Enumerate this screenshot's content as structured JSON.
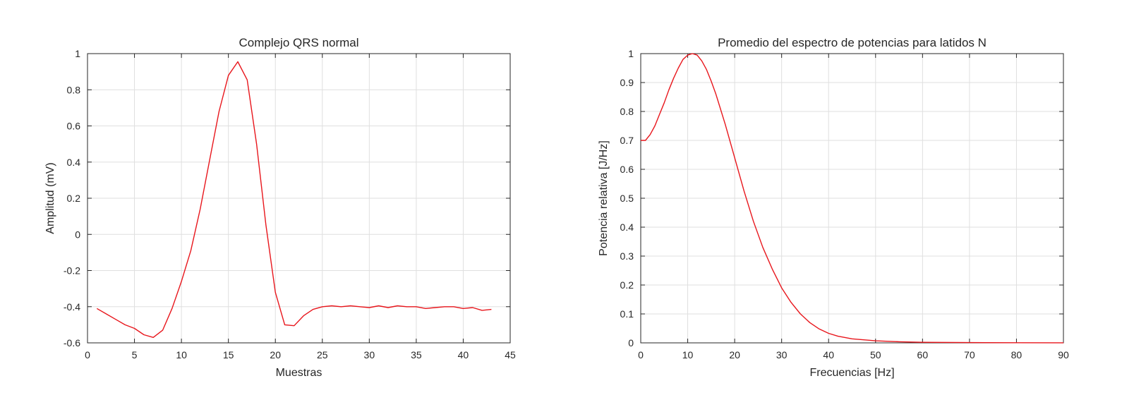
{
  "chart_data": [
    {
      "type": "line",
      "title": "Complejo QRS normal",
      "xlabel": "Muestras",
      "ylabel": "Amplitud (mV)",
      "xlim": [
        0,
        45
      ],
      "ylim": [
        -0.6,
        1
      ],
      "xticks": [
        0,
        5,
        10,
        15,
        20,
        25,
        30,
        35,
        40,
        45
      ],
      "yticks": [
        -0.6,
        -0.4,
        -0.2,
        0,
        0.2,
        0.4,
        0.6,
        0.8,
        1
      ],
      "grid": true,
      "line_color": "#e8161c",
      "series": [
        {
          "x": [
            1,
            2,
            3,
            4,
            5,
            6,
            7,
            8,
            9,
            10,
            11,
            12,
            13,
            14,
            15,
            16,
            17,
            18,
            19,
            20,
            21,
            22,
            23,
            24,
            25,
            26,
            27,
            28,
            29,
            30,
            31,
            32,
            33,
            34,
            35,
            36,
            37,
            38,
            39,
            40,
            41,
            42,
            43
          ],
          "values": [
            -0.41,
            -0.44,
            -0.47,
            -0.5,
            -0.52,
            -0.555,
            -0.57,
            -0.53,
            -0.41,
            -0.26,
            -0.09,
            0.14,
            0.41,
            0.68,
            0.88,
            0.955,
            0.855,
            0.5,
            0.05,
            -0.32,
            -0.5,
            -0.505,
            -0.45,
            -0.415,
            -0.4,
            -0.395,
            -0.4,
            -0.395,
            -0.4,
            -0.405,
            -0.395,
            -0.405,
            -0.395,
            -0.4,
            -0.4,
            -0.41,
            -0.405,
            -0.4,
            -0.4,
            -0.41,
            -0.405,
            -0.42,
            -0.415
          ]
        }
      ]
    },
    {
      "type": "line",
      "title": "Promedio del espectro de potencias para latidos N",
      "xlabel": "Frecuencias [Hz]",
      "ylabel": "Potencia relativa [J/Hz]",
      "xlim": [
        0,
        90
      ],
      "ylim": [
        0,
        1
      ],
      "xticks": [
        0,
        10,
        20,
        30,
        40,
        50,
        60,
        70,
        80,
        90
      ],
      "yticks": [
        0,
        0.1,
        0.2,
        0.3,
        0.4,
        0.5,
        0.6,
        0.7,
        0.8,
        0.9,
        1
      ],
      "grid": true,
      "line_color": "#e8161c",
      "series": [
        {
          "x": [
            0,
            1,
            2,
            3,
            4,
            5,
            6,
            7,
            8,
            9,
            10,
            11,
            12,
            13,
            14,
            15,
            16,
            18,
            20,
            22,
            24,
            26,
            28,
            30,
            32,
            34,
            36,
            38,
            40,
            42,
            45,
            50,
            55,
            60,
            70,
            80,
            90
          ],
          "values": [
            0.7,
            0.7,
            0.72,
            0.75,
            0.79,
            0.83,
            0.875,
            0.915,
            0.95,
            0.98,
            0.995,
            1.0,
            0.995,
            0.975,
            0.945,
            0.905,
            0.86,
            0.755,
            0.64,
            0.525,
            0.42,
            0.33,
            0.255,
            0.19,
            0.14,
            0.1,
            0.07,
            0.048,
            0.033,
            0.023,
            0.014,
            0.007,
            0.004,
            0.002,
            0.001,
            0.0005,
            0.0003
          ]
        }
      ]
    }
  ]
}
